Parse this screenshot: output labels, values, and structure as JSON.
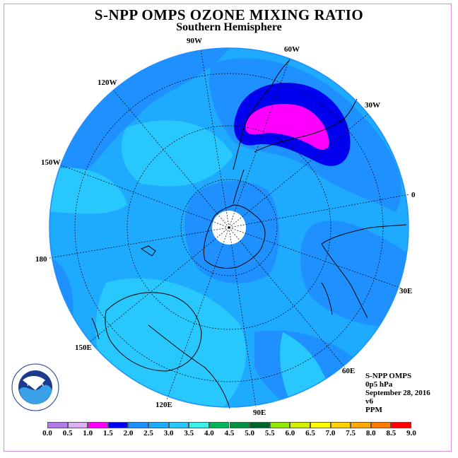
{
  "title": "S-NPP OMPS OZONE MIXING RATIO",
  "subtitle": "Southern Hemisphere",
  "longitude_labels": {
    "lon_0": "0",
    "lon_30e": "30E",
    "lon_60e": "60E",
    "lon_90e": "90E",
    "lon_120e": "120E",
    "lon_150e": "150E",
    "lon_180": "180",
    "lon_150w": "150W",
    "lon_120w": "120W",
    "lon_90w": "90W",
    "lon_60w": "60W",
    "lon_30w": "30W"
  },
  "info": {
    "instrument": "S-NPP OMPS",
    "level": "0p5 hPa",
    "date": "September 28, 2016",
    "version": "v6",
    "units": "PPM"
  },
  "logo": {
    "name": "noaa-logo",
    "text": "NOAA",
    "ring_text": "NATIONAL OCEANIC AND ATMOSPHERIC ADMINISTRATION · U.S. DEPARTMENT OF COMMERCE"
  },
  "colorbar": {
    "labels": [
      "0.0",
      "0.5",
      "1.0",
      "1.5",
      "2.0",
      "2.5",
      "3.0",
      "3.5",
      "4.0",
      "4.5",
      "5.0",
      "5.5",
      "6.0",
      "6.5",
      "7.0",
      "7.5",
      "8.0",
      "8.5",
      "9.0"
    ],
    "colors": [
      "#b07ae8",
      "#dab0f0",
      "#ff00ff",
      "#0000ee",
      "#1e90ff",
      "#1eaaff",
      "#28c8ff",
      "#3cf0e6",
      "#00b45a",
      "#009040",
      "#006428",
      "#96e600",
      "#d2f000",
      "#ffff00",
      "#ffd200",
      "#ffaa00",
      "#ff7800",
      "#ff0000",
      "#a0522d"
    ]
  },
  "colors": {
    "ocean_base": "#1eaaff",
    "level_2_5": "#1e90ff",
    "level_3_0": "#28c8ff",
    "level_1_5": "#0000ee",
    "level_1_0": "#ff00ff",
    "frame": "#d98fd9"
  }
}
